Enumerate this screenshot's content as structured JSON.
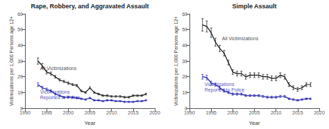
{
  "chart_data": [
    {
      "type": "line",
      "title": "Rape, Robbery, and Aggravated Assault",
      "xlabel": "Year",
      "ylabel": "Victimizations per 1,000 Persons age 12+",
      "xlim": [
        1990,
        2020
      ],
      "xticks": [
        1990,
        1995,
        2000,
        2005,
        2010,
        2015,
        2020
      ],
      "ylim": [
        0,
        60
      ],
      "yticks": [
        0,
        10,
        20,
        30,
        40,
        50,
        60
      ],
      "grid": false,
      "x": [
        1993,
        1994,
        1995,
        1996,
        1997,
        1998,
        1999,
        2000,
        2001,
        2002,
        2003,
        2004,
        2005,
        2006,
        2007,
        2008,
        2009,
        2010,
        2011,
        2012,
        2013,
        2014,
        2015,
        2016,
        2017,
        2018
      ],
      "series": [
        {
          "color": "#111111",
          "values": [
            30,
            27,
            23,
            22,
            20,
            18,
            17,
            16,
            15,
            14.5,
            11,
            10,
            13,
            10,
            9,
            8,
            8,
            7.5,
            7.5,
            7.5,
            7,
            7,
            8,
            8,
            8,
            9
          ],
          "errors": [
            2.0,
            1.5,
            1.2,
            1.0,
            0.8,
            0.7,
            0.7,
            0.7,
            0.6,
            0.6,
            0.5,
            0.5,
            0.6,
            0.5,
            0.5,
            0.5,
            0.5,
            0.5,
            0.5,
            0.5,
            0.5,
            0.5,
            0.5,
            0.5,
            0.5,
            0.5
          ]
        },
        {
          "color": "#1a1aaa",
          "values": [
            15,
            13,
            12,
            11,
            9,
            8,
            7,
            7,
            7,
            6.5,
            6,
            5.5,
            6.5,
            5,
            5,
            4.5,
            5,
            5,
            4.5,
            4.5,
            4,
            4,
            4,
            4.5,
            4.5,
            5
          ],
          "errors": [
            1.2,
            1.0,
            0.8,
            0.7,
            0.6,
            0.5,
            0.5,
            0.5,
            0.5,
            0.5,
            0.4,
            0.4,
            0.5,
            0.4,
            0.4,
            0.4,
            0.4,
            0.4,
            0.4,
            0.4,
            0.4,
            0.4,
            0.4,
            0.4,
            0.4,
            0.4
          ]
        }
      ],
      "annotations": [
        {
          "text": "All Victimizations",
          "x": 1993.5,
          "y": 27,
          "color": "#111111"
        },
        {
          "text": "Victimizations\nReported to Police",
          "x": 1993.5,
          "y": 12,
          "color": "#1a1aaa"
        }
      ]
    },
    {
      "type": "line",
      "title": "Simple Assault",
      "xlabel": "Year",
      "ylabel": "Victimizations per 1,000 Persons age 12+",
      "xlim": [
        1990,
        2020
      ],
      "xticks": [
        1990,
        1995,
        2000,
        2005,
        2010,
        2015,
        2020
      ],
      "ylim": [
        0,
        60
      ],
      "yticks": [
        0,
        10,
        20,
        30,
        40,
        50,
        60
      ],
      "grid": false,
      "x": [
        1993,
        1994,
        1995,
        1996,
        1997,
        1998,
        1999,
        2000,
        2001,
        2002,
        2003,
        2004,
        2005,
        2006,
        2007,
        2008,
        2009,
        2010,
        2011,
        2012,
        2013,
        2014,
        2015,
        2016,
        2017,
        2018
      ],
      "series": [
        {
          "color": "#111111",
          "values": [
            53,
            52,
            48,
            42,
            38,
            35,
            29,
            23,
            22,
            22,
            20,
            21,
            21,
            21,
            20,
            20,
            19,
            19,
            21,
            20,
            15,
            13,
            12,
            13,
            15,
            15
          ],
          "errors": [
            4.0,
            3.5,
            3.0,
            2.5,
            2.0,
            1.8,
            1.5,
            1.5,
            1.5,
            1.5,
            1.5,
            1.5,
            1.5,
            1.5,
            1.5,
            1.5,
            1.5,
            1.5,
            1.5,
            1.5,
            1.2,
            1.2,
            1.2,
            1.2,
            1.2,
            1.2
          ]
        },
        {
          "color": "#1a1aaa",
          "values": [
            20,
            19.5,
            16,
            15,
            13,
            11,
            10,
            9,
            9,
            9,
            8,
            8,
            8,
            8,
            7.5,
            7,
            7,
            7,
            7.5,
            7.5,
            6,
            5.5,
            5,
            5.5,
            6,
            6
          ],
          "errors": [
            1.5,
            1.5,
            1.2,
            1.0,
            0.9,
            0.8,
            0.7,
            0.7,
            0.7,
            0.7,
            0.6,
            0.6,
            0.6,
            0.6,
            0.6,
            0.6,
            0.6,
            0.6,
            0.6,
            0.6,
            0.5,
            0.5,
            0.5,
            0.5,
            0.5,
            0.5
          ]
        }
      ],
      "annotations": [
        {
          "text": "All Victimizations",
          "x": 1997.5,
          "y": 46,
          "color": "#111111"
        },
        {
          "text": "Victimizations\nReported to Police",
          "x": 1993.5,
          "y": 17,
          "color": "#1a1aaa"
        }
      ]
    }
  ]
}
